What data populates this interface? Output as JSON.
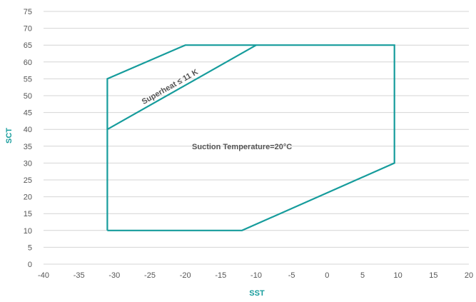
{
  "chart_data": {
    "type": "line",
    "title": "",
    "xlabel": "SST",
    "ylabel": "SCT",
    "xlim": [
      -40,
      20
    ],
    "ylim": [
      0,
      75
    ],
    "xticks": [
      -40,
      -35,
      -30,
      -25,
      -20,
      -15,
      -10,
      -5,
      0,
      5,
      10,
      15,
      20
    ],
    "yticks": [
      0,
      5,
      10,
      15,
      20,
      25,
      30,
      35,
      40,
      45,
      50,
      55,
      60,
      65,
      70,
      75
    ],
    "grid": "horizontal",
    "line_color": "#169c9c",
    "series": [
      {
        "x": [
          -31,
          -31,
          -20,
          9.5,
          9.5,
          -12,
          -31
        ],
        "y": [
          10,
          55,
          65,
          65,
          30,
          10,
          10
        ]
      },
      {
        "x": [
          -31,
          -10
        ],
        "y": [
          40,
          65
        ]
      }
    ],
    "annotations": [
      {
        "text": "Superheat ≤ 11 K",
        "x": -22,
        "y": 52
      },
      {
        "text": "Suction Temperature=20°C",
        "x": -12,
        "y": 35
      }
    ]
  }
}
